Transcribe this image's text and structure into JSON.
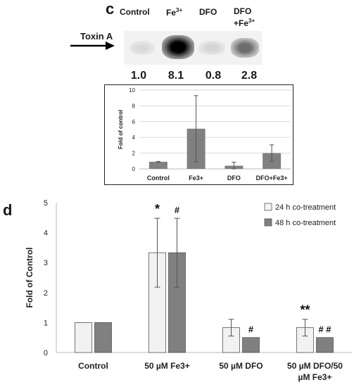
{
  "panel_c": {
    "label": "c",
    "lanes": [
      {
        "name": "Control",
        "sup": ""
      },
      {
        "name": "Fe",
        "sup": "3+"
      },
      {
        "name": "DFO",
        "sup": ""
      },
      {
        "name": "DFO",
        "line2": "+Fe",
        "sup": "3+"
      }
    ],
    "blot_label": "Toxin A",
    "band_values": [
      "1.0",
      "8.1",
      "0.8",
      "2.8"
    ],
    "band_intensity": [
      0.1,
      1.0,
      0.12,
      0.55
    ]
  },
  "panel_d": {
    "label": "d"
  },
  "chart_data": [
    {
      "type": "bar",
      "categories": [
        "Control",
        "Fe3+",
        "DFO",
        "DFO+Fe3+"
      ],
      "values": [
        0.9,
        5.1,
        0.4,
        2.0
      ],
      "errors": [
        0.05,
        4.2,
        0.45,
        1.05
      ],
      "ylabel": "Fold of control",
      "ylim": [
        0,
        10
      ],
      "yticks": [
        0,
        2,
        4,
        6,
        8,
        10
      ],
      "color": "#808080",
      "grid": true
    },
    {
      "type": "bar",
      "categories": [
        "Control",
        "50 µM Fe3+",
        "50 µM DFO",
        "50 µM DFO/50 µM Fe3+"
      ],
      "series": [
        {
          "name": "24 h co-treatment",
          "values": [
            1.0,
            3.33,
            0.83,
            0.83
          ],
          "errors": [
            0,
            1.15,
            0.28,
            0.28
          ],
          "color": "#f2f2f2",
          "marks": [
            "",
            "*",
            "",
            "**"
          ]
        },
        {
          "name": "48 h co-treatment",
          "values": [
            1.0,
            3.33,
            0.5,
            0.5
          ],
          "errors": [
            0,
            1.15,
            0,
            0
          ],
          "color": "#808080",
          "marks": [
            "",
            "#",
            "#",
            "# #"
          ]
        }
      ],
      "ylabel": "Fold of Control",
      "ylim": [
        0,
        5
      ],
      "yticks": [
        0,
        1,
        2,
        3,
        4,
        5
      ],
      "legend": "top-right",
      "grid": false
    }
  ]
}
